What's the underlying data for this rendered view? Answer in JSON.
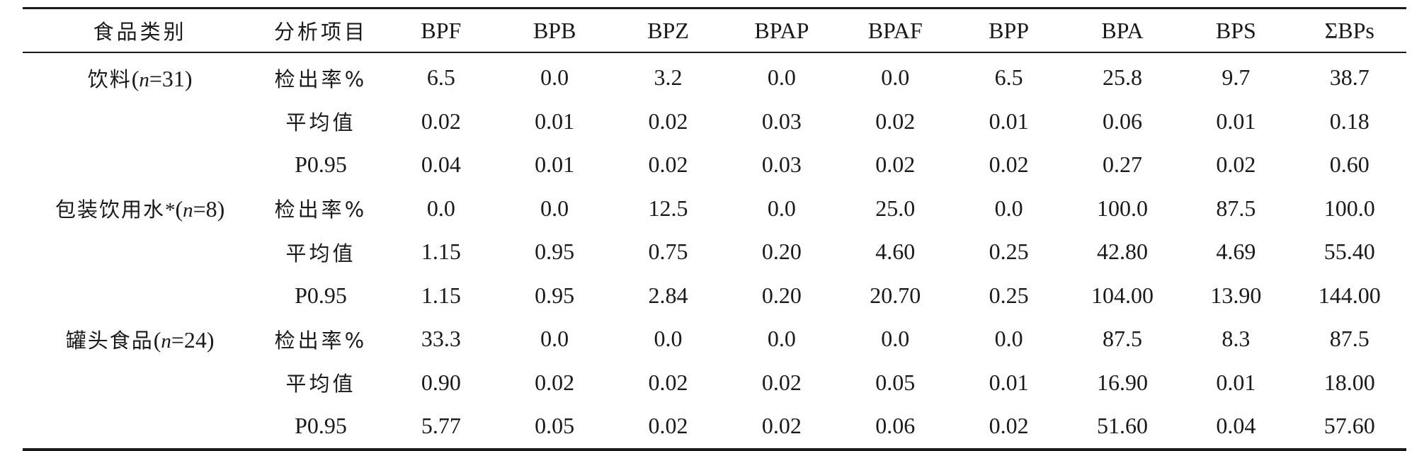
{
  "header": {
    "category": "食品类别",
    "item": "分析项目",
    "columns": [
      "BPF",
      "BPB",
      "BPZ",
      "BPAP",
      "BPAF",
      "BPP",
      "BPA",
      "BPS",
      "ΣBPs"
    ]
  },
  "groups": [
    {
      "name": "饮料",
      "n_label": "n",
      "n_value": "=31",
      "suffix": "",
      "rows": [
        {
          "item": "检出率%",
          "values": [
            "6.5",
            "0.0",
            "3.2",
            "0.0",
            "0.0",
            "6.5",
            "25.8",
            "9.7",
            "38.7"
          ]
        },
        {
          "item": "平均值",
          "values": [
            "0.02",
            "0.01",
            "0.02",
            "0.03",
            "0.02",
            "0.01",
            "0.06",
            "0.01",
            "0.18"
          ]
        },
        {
          "item": "P0.95",
          "values": [
            "0.04",
            "0.01",
            "0.02",
            "0.03",
            "0.02",
            "0.02",
            "0.27",
            "0.02",
            "0.60"
          ]
        }
      ]
    },
    {
      "name": "包装饮用水",
      "n_label": "n",
      "n_value": "=8",
      "suffix": "*",
      "rows": [
        {
          "item": "检出率%",
          "values": [
            "0.0",
            "0.0",
            "12.5",
            "0.0",
            "25.0",
            "0.0",
            "100.0",
            "87.5",
            "100.0"
          ]
        },
        {
          "item": "平均值",
          "values": [
            "1.15",
            "0.95",
            "0.75",
            "0.20",
            "4.60",
            "0.25",
            "42.80",
            "4.69",
            "55.40"
          ]
        },
        {
          "item": "P0.95",
          "values": [
            "1.15",
            "0.95",
            "2.84",
            "0.20",
            "20.70",
            "0.25",
            "104.00",
            "13.90",
            "144.00"
          ]
        }
      ]
    },
    {
      "name": "罐头食品",
      "n_label": "n",
      "n_value": "=24",
      "suffix": "",
      "rows": [
        {
          "item": "检出率%",
          "values": [
            "33.3",
            "0.0",
            "0.0",
            "0.0",
            "0.0",
            "0.0",
            "87.5",
            "8.3",
            "87.5"
          ]
        },
        {
          "item": "平均值",
          "values": [
            "0.90",
            "0.02",
            "0.02",
            "0.02",
            "0.05",
            "0.01",
            "16.90",
            "0.01",
            "18.00"
          ]
        },
        {
          "item": "P0.95",
          "values": [
            "5.77",
            "0.05",
            "0.02",
            "0.02",
            "0.06",
            "0.02",
            "51.60",
            "0.04",
            "57.60"
          ]
        }
      ]
    }
  ]
}
